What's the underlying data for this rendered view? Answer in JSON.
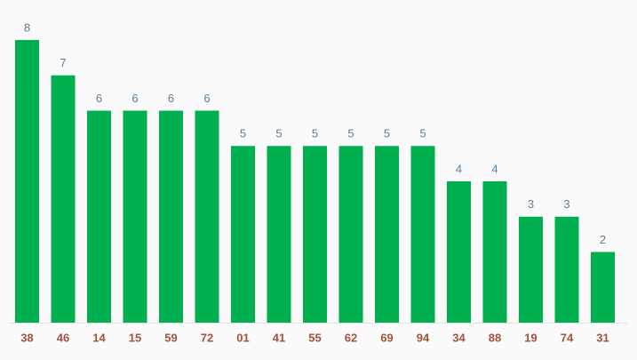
{
  "chart_data": {
    "type": "bar",
    "categories": [
      "38",
      "46",
      "14",
      "15",
      "59",
      "72",
      "01",
      "41",
      "55",
      "62",
      "69",
      "94",
      "34",
      "88",
      "19",
      "74",
      "31"
    ],
    "values": [
      8,
      7,
      6,
      6,
      6,
      6,
      5,
      5,
      5,
      5,
      5,
      5,
      4,
      4,
      3,
      3,
      2
    ],
    "color": "#00b050"
  }
}
